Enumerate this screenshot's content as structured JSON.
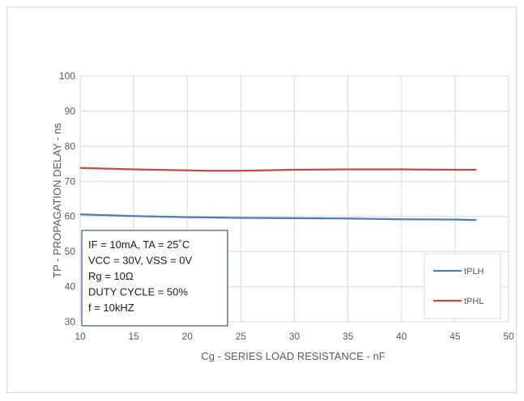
{
  "chart_data": {
    "type": "line",
    "title": "",
    "xlabel": "Cg - SERIES LOAD RESISTANCE - nF",
    "ylabel": "TP - PROPAGATION DELAY - ns",
    "xlim": [
      10,
      50
    ],
    "ylim": [
      30,
      100
    ],
    "x_ticks": [
      10,
      15,
      20,
      25,
      30,
      35,
      40,
      45,
      50
    ],
    "y_ticks": [
      30,
      40,
      50,
      60,
      70,
      80,
      90,
      100
    ],
    "grid": "vertical and horizontal major gridlines",
    "legend_position": "bottom-right",
    "series": [
      {
        "name": "tPLH",
        "color": "#4a7ebb",
        "x": [
          10,
          15,
          20,
          25,
          30,
          35,
          40,
          45,
          47
        ],
        "y": [
          60.6,
          60.1,
          59.8,
          59.6,
          59.5,
          59.4,
          59.2,
          59.1,
          59.0
        ]
      },
      {
        "name": "tPHL",
        "color": "#be4b48",
        "x": [
          10,
          15,
          20,
          22,
          25,
          30,
          35,
          40,
          45,
          47
        ],
        "y": [
          73.8,
          73.4,
          73.1,
          73.0,
          73.0,
          73.3,
          73.4,
          73.4,
          73.3,
          73.3
        ]
      }
    ],
    "annotation": {
      "lines": [
        "IF = 10mA, TA = 25˚C",
        "VCC = 30V, VSS = 0V",
        "Rg = 10Ω",
        "DUTY CYCLE = 50%",
        "f = 10kHZ"
      ],
      "border_color": "#2f5597"
    }
  }
}
